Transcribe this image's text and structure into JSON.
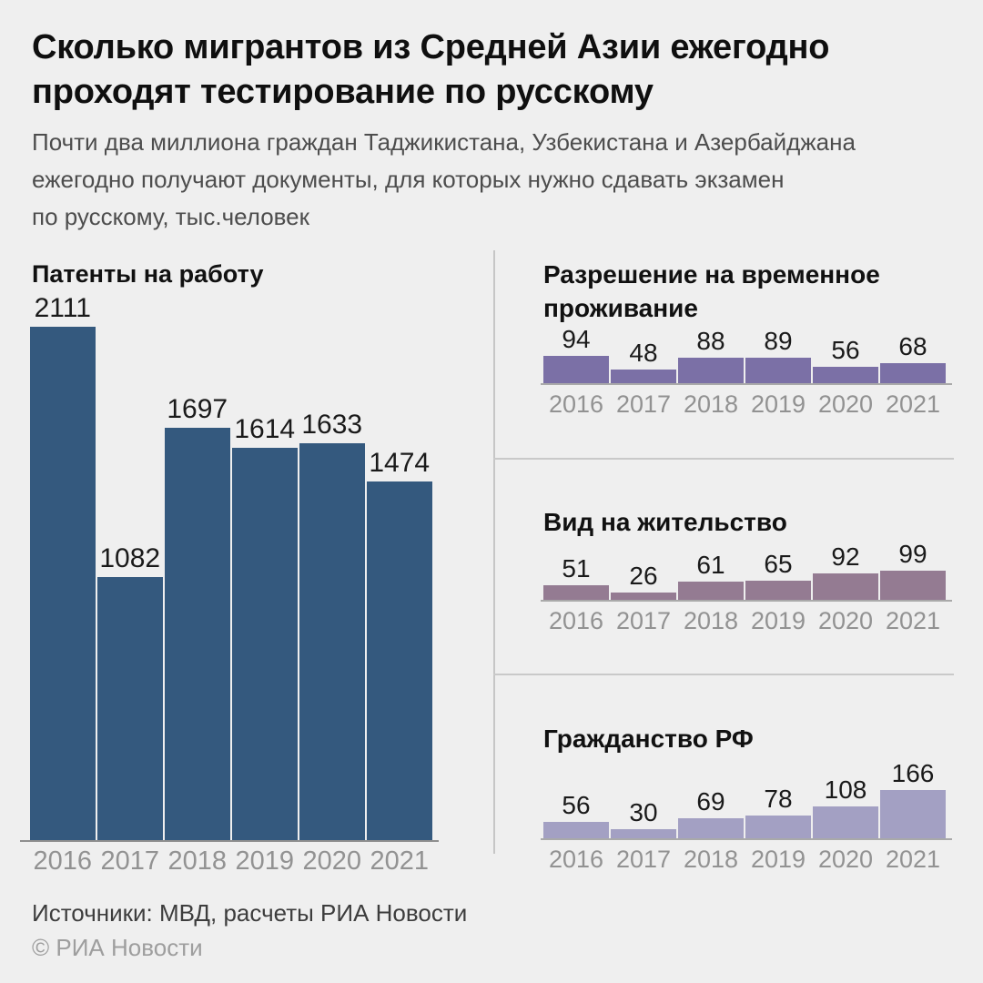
{
  "header": {
    "title_lines": [
      "Сколько мигрантов из Средней Азии ежегодно",
      "проходят тестирование по русскому"
    ],
    "subtitle_lines": [
      "Почти два миллиона граждан Таджикистана, Узбекистана и Азербайджана",
      "ежегодно получают документы, для которых нужно сдавать экзамен",
      "по русскому, тыс.человек"
    ]
  },
  "footer": {
    "sources": "Источники: МВД, расчеты РИА Новости",
    "copyright": "© РИА Новости"
  },
  "colors": {
    "background": "#efefef",
    "patents_bar": "#34597e",
    "rvp_bar": "#7b70a6",
    "vnj_bar": "#947b92",
    "citizenship_bar": "#a3a0c3",
    "axis_left": "#8e8e8e",
    "axis_right": "#a9a9a9",
    "divider": "#c6c6c6",
    "value_label": "#1a1a1a",
    "year_label": "#929292"
  },
  "chart_data": [
    {
      "id": "patents",
      "type": "bar",
      "title": "Патенты на работу",
      "categories": [
        "2016",
        "2017",
        "2018",
        "2019",
        "2020",
        "2021"
      ],
      "values": [
        2111,
        1082,
        1697,
        1614,
        1633,
        1474
      ],
      "bar_color": "#34597e",
      "ylim": [
        0,
        2200
      ],
      "grid": false,
      "value_labels": "above bars",
      "unit_note": "тыс.человек"
    },
    {
      "id": "rvp",
      "type": "bar",
      "title": "Разрешение на временное проживание",
      "categories": [
        "2016",
        "2017",
        "2018",
        "2019",
        "2020",
        "2021"
      ],
      "values": [
        94,
        48,
        88,
        89,
        56,
        68
      ],
      "bar_color": "#7b70a6",
      "ylim": [
        0,
        100
      ],
      "grid": false,
      "value_labels": "above bars",
      "unit_note": "тыс.человек"
    },
    {
      "id": "vnj",
      "type": "bar",
      "title": "Вид на жительство",
      "categories": [
        "2016",
        "2017",
        "2018",
        "2019",
        "2020",
        "2021"
      ],
      "values": [
        51,
        26,
        61,
        65,
        92,
        99
      ],
      "bar_color": "#947b92",
      "ylim": [
        0,
        100
      ],
      "grid": false,
      "value_labels": "above bars",
      "unit_note": "тыс.человек"
    },
    {
      "id": "citizenship",
      "type": "bar",
      "title": "Гражданство РФ",
      "categories": [
        "2016",
        "2017",
        "2018",
        "2019",
        "2020",
        "2021"
      ],
      "values": [
        56,
        30,
        69,
        78,
        108,
        166
      ],
      "bar_color": "#a3a0c3",
      "ylim": [
        0,
        170
      ],
      "grid": false,
      "value_labels": "above bars",
      "unit_note": "тыс.человек"
    }
  ]
}
